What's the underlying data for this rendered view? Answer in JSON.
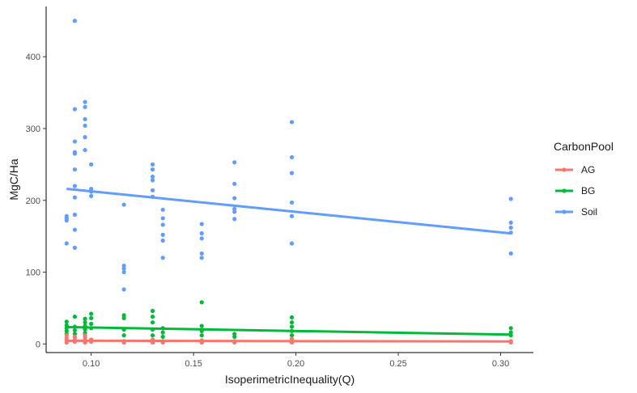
{
  "chart_data": {
    "type": "scatter",
    "xlabel": "IsoperimetricInequality(Q)",
    "ylabel": "MgC/Ha",
    "xlim": [
      0.078,
      0.316
    ],
    "ylim": [
      -12,
      470
    ],
    "x_ticks": [
      {
        "value": 0.1,
        "label": "0.10"
      },
      {
        "value": 0.15,
        "label": "0.15"
      },
      {
        "value": 0.2,
        "label": "0.20"
      },
      {
        "value": 0.25,
        "label": "0.25"
      },
      {
        "value": 0.3,
        "label": "0.30"
      }
    ],
    "y_ticks": [
      {
        "value": 0,
        "label": "0"
      },
      {
        "value": 100,
        "label": "100"
      },
      {
        "value": 200,
        "label": "200"
      },
      {
        "value": 300,
        "label": "300"
      },
      {
        "value": 400,
        "label": "400"
      }
    ],
    "grid": false,
    "legend": {
      "title": "CarbonPool",
      "placement": "right"
    },
    "series": [
      {
        "name": "AG",
        "color": "#f8766d",
        "points": [
          [
            0.088,
            2
          ],
          [
            0.088,
            5
          ],
          [
            0.088,
            8
          ],
          [
            0.088,
            12
          ],
          [
            0.092,
            3
          ],
          [
            0.092,
            6
          ],
          [
            0.092,
            10
          ],
          [
            0.097,
            2
          ],
          [
            0.097,
            5
          ],
          [
            0.097,
            9
          ],
          [
            0.097,
            12
          ],
          [
            0.1,
            3
          ],
          [
            0.1,
            6
          ],
          [
            0.116,
            2
          ],
          [
            0.116,
            4
          ],
          [
            0.13,
            2
          ],
          [
            0.13,
            4
          ],
          [
            0.13,
            6
          ],
          [
            0.135,
            2
          ],
          [
            0.135,
            4
          ],
          [
            0.154,
            2
          ],
          [
            0.154,
            5
          ],
          [
            0.17,
            2
          ],
          [
            0.17,
            4
          ],
          [
            0.198,
            2
          ],
          [
            0.198,
            4
          ],
          [
            0.198,
            7
          ],
          [
            0.305,
            2
          ],
          [
            0.305,
            4
          ]
        ],
        "trend": [
          [
            0.088,
            4.5
          ],
          [
            0.305,
            3.5
          ]
        ]
      },
      {
        "name": "BG",
        "color": "#00ba38",
        "points": [
          [
            0.088,
            14
          ],
          [
            0.088,
            18
          ],
          [
            0.088,
            22
          ],
          [
            0.088,
            26
          ],
          [
            0.088,
            31
          ],
          [
            0.092,
            14
          ],
          [
            0.092,
            19
          ],
          [
            0.092,
            24
          ],
          [
            0.092,
            38
          ],
          [
            0.097,
            15
          ],
          [
            0.097,
            20
          ],
          [
            0.097,
            25
          ],
          [
            0.097,
            30
          ],
          [
            0.097,
            35
          ],
          [
            0.1,
            22
          ],
          [
            0.1,
            28
          ],
          [
            0.1,
            36
          ],
          [
            0.1,
            42
          ],
          [
            0.116,
            12
          ],
          [
            0.116,
            20
          ],
          [
            0.116,
            36
          ],
          [
            0.116,
            40
          ],
          [
            0.13,
            12
          ],
          [
            0.13,
            20
          ],
          [
            0.13,
            30
          ],
          [
            0.13,
            38
          ],
          [
            0.13,
            46
          ],
          [
            0.135,
            10
          ],
          [
            0.135,
            16
          ],
          [
            0.135,
            22
          ],
          [
            0.154,
            12
          ],
          [
            0.154,
            18
          ],
          [
            0.154,
            25
          ],
          [
            0.154,
            58
          ],
          [
            0.17,
            10
          ],
          [
            0.17,
            14
          ],
          [
            0.198,
            12
          ],
          [
            0.198,
            18
          ],
          [
            0.198,
            24
          ],
          [
            0.198,
            30
          ],
          [
            0.198,
            37
          ],
          [
            0.305,
            12
          ],
          [
            0.305,
            16
          ],
          [
            0.305,
            22
          ]
        ],
        "trend": [
          [
            0.088,
            23.5
          ],
          [
            0.305,
            13
          ]
        ]
      },
      {
        "name": "Soil",
        "color": "#619cff",
        "points": [
          [
            0.088,
            140
          ],
          [
            0.088,
            172
          ],
          [
            0.088,
            175
          ],
          [
            0.088,
            178
          ],
          [
            0.092,
            450
          ],
          [
            0.092,
            327
          ],
          [
            0.092,
            282
          ],
          [
            0.092,
            267
          ],
          [
            0.092,
            265
          ],
          [
            0.092,
            243
          ],
          [
            0.092,
            220
          ],
          [
            0.092,
            204
          ],
          [
            0.092,
            180
          ],
          [
            0.092,
            159
          ],
          [
            0.092,
            134
          ],
          [
            0.097,
            337
          ],
          [
            0.097,
            330
          ],
          [
            0.097,
            313
          ],
          [
            0.097,
            304
          ],
          [
            0.097,
            288
          ],
          [
            0.097,
            270
          ],
          [
            0.1,
            250
          ],
          [
            0.1,
            216
          ],
          [
            0.1,
            212
          ],
          [
            0.1,
            206
          ],
          [
            0.116,
            194
          ],
          [
            0.116,
            109
          ],
          [
            0.116,
            105
          ],
          [
            0.116,
            100
          ],
          [
            0.116,
            76
          ],
          [
            0.13,
            250
          ],
          [
            0.13,
            243
          ],
          [
            0.13,
            233
          ],
          [
            0.13,
            228
          ],
          [
            0.13,
            214
          ],
          [
            0.13,
            205
          ],
          [
            0.135,
            187
          ],
          [
            0.135,
            175
          ],
          [
            0.135,
            166
          ],
          [
            0.135,
            152
          ],
          [
            0.135,
            144
          ],
          [
            0.135,
            120
          ],
          [
            0.154,
            167
          ],
          [
            0.154,
            154
          ],
          [
            0.154,
            147
          ],
          [
            0.154,
            126
          ],
          [
            0.154,
            120
          ],
          [
            0.17,
            253
          ],
          [
            0.17,
            223
          ],
          [
            0.17,
            203
          ],
          [
            0.17,
            188
          ],
          [
            0.17,
            184
          ],
          [
            0.17,
            174
          ],
          [
            0.198,
            309
          ],
          [
            0.198,
            260
          ],
          [
            0.198,
            238
          ],
          [
            0.198,
            197
          ],
          [
            0.198,
            178
          ],
          [
            0.198,
            140
          ],
          [
            0.305,
            202
          ],
          [
            0.305,
            169
          ],
          [
            0.305,
            162
          ],
          [
            0.305,
            155
          ],
          [
            0.305,
            126
          ]
        ],
        "trend": [
          [
            0.088,
            216
          ],
          [
            0.305,
            154
          ]
        ]
      }
    ]
  }
}
